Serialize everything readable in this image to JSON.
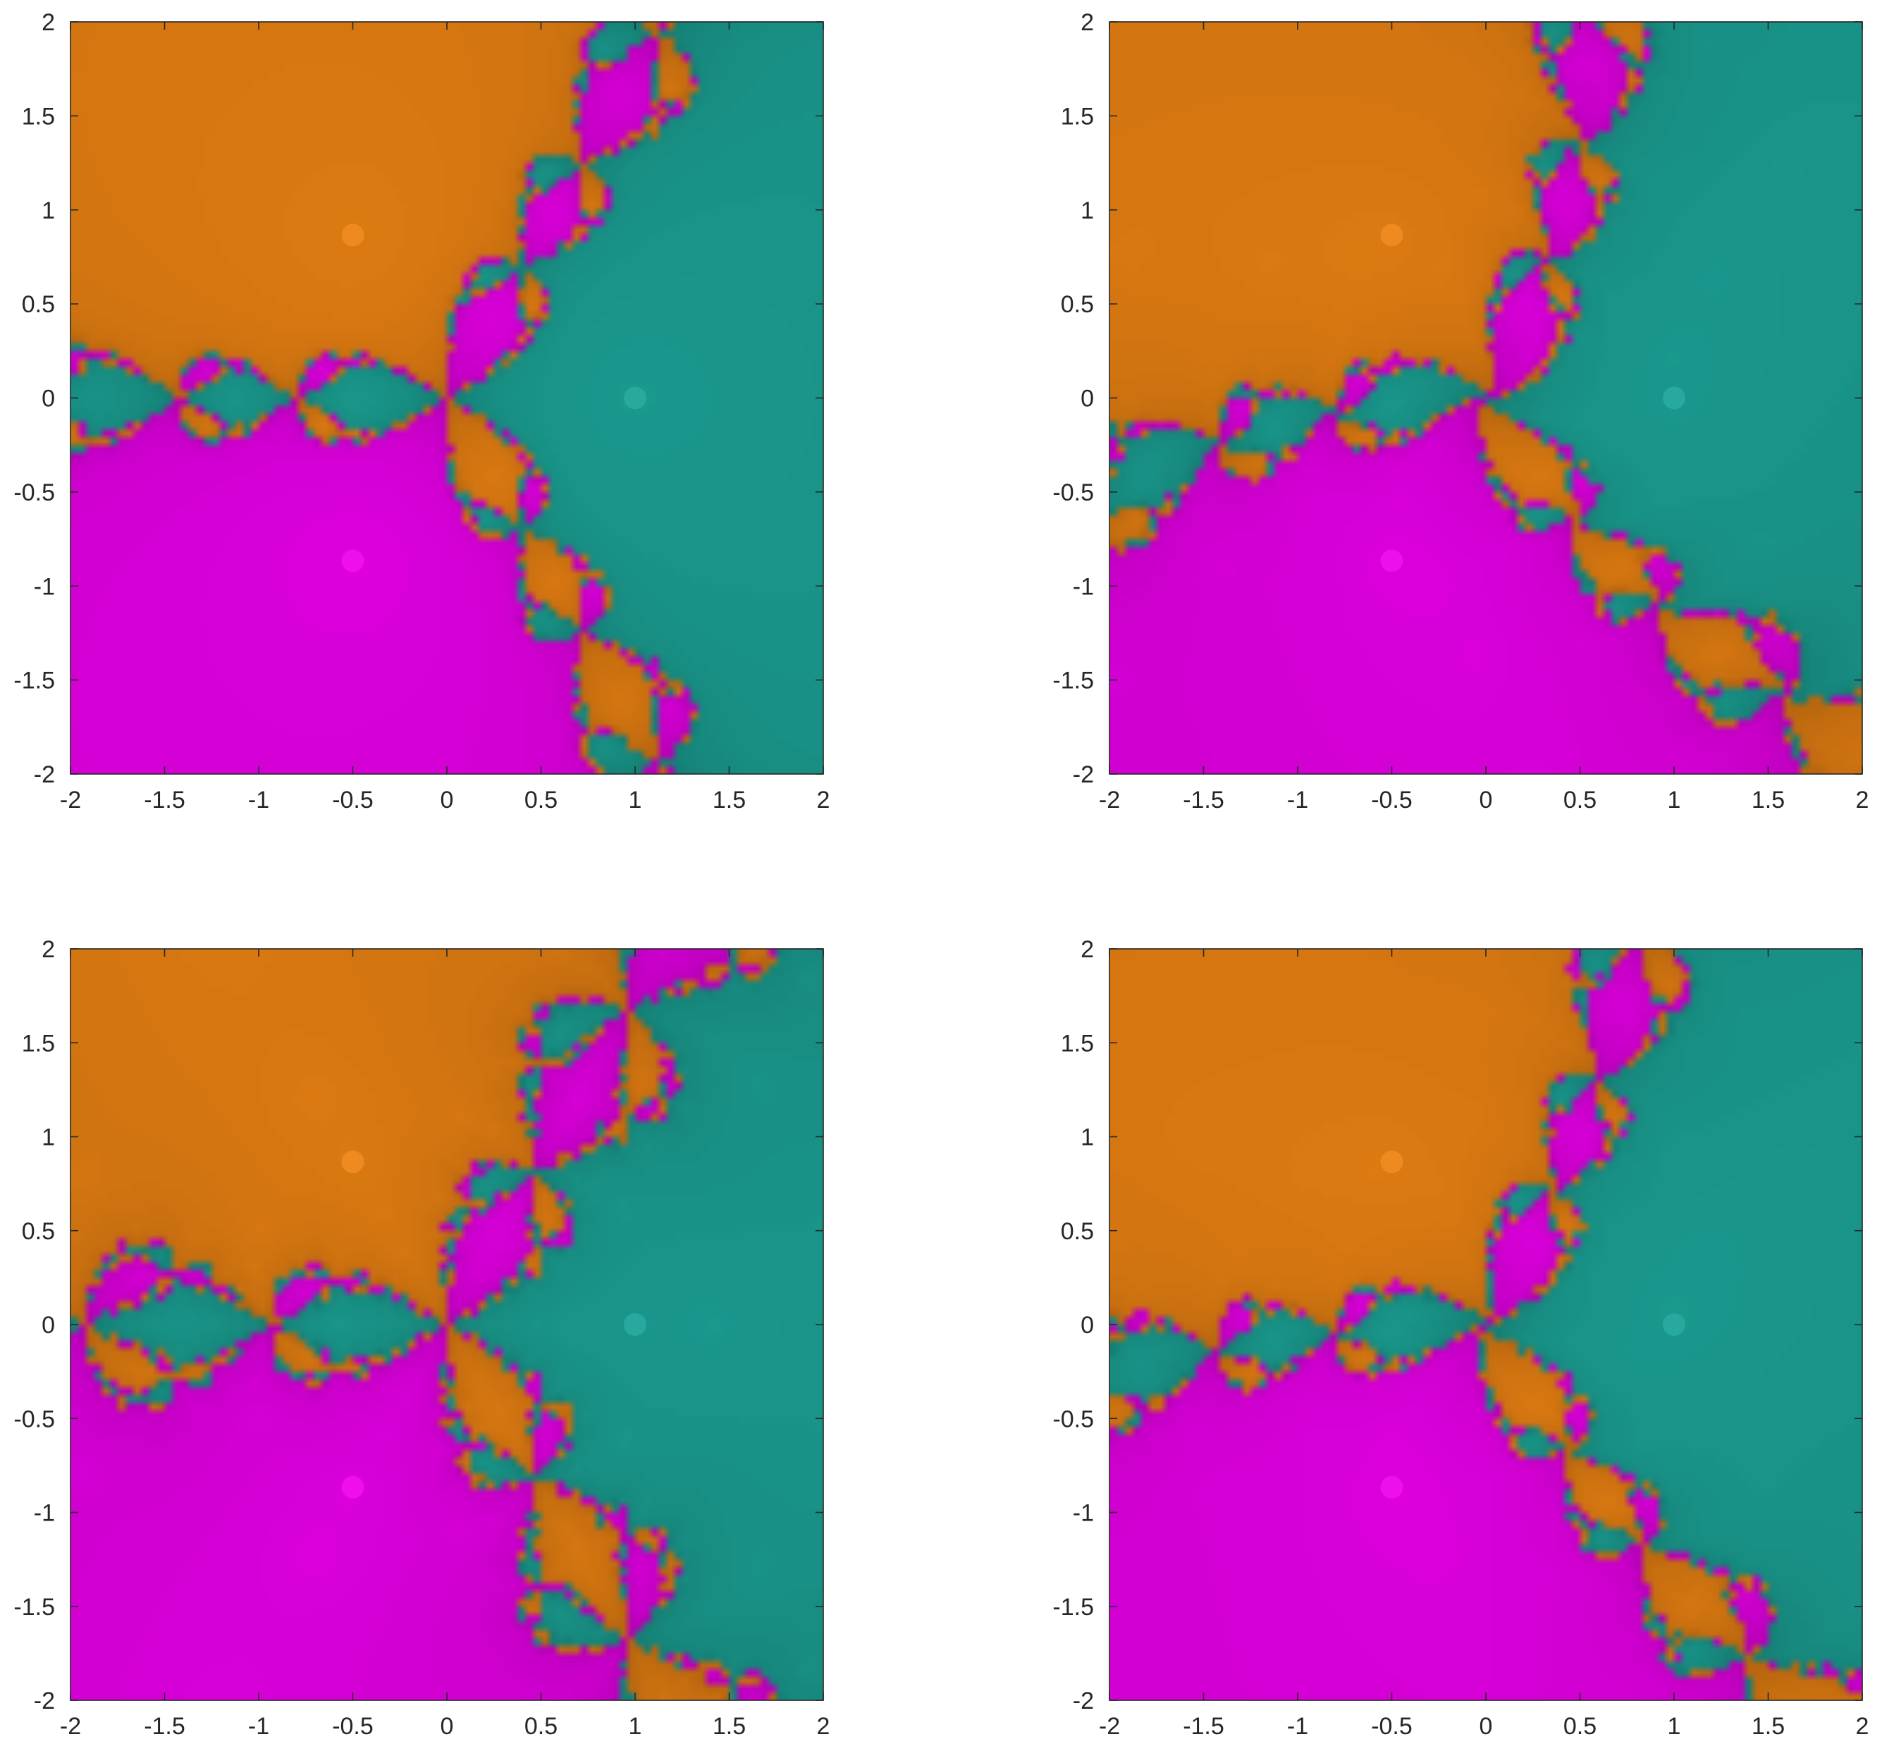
{
  "chart_data": [
    {
      "type": "heatmap",
      "title": "",
      "xlabel": "",
      "ylabel": "",
      "xlim": [
        -2,
        2
      ],
      "ylim": [
        -2,
        2
      ],
      "grid": false,
      "legend": "none",
      "x_ticks": [
        "-2",
        "-1.5",
        "-1",
        "-0.5",
        "0",
        "0.5",
        "1",
        "1.5",
        "2"
      ],
      "y_ticks": [
        "2",
        "1.5",
        "1",
        "0.5",
        "0",
        "-0.5",
        "-1",
        "-1.5",
        "-2"
      ],
      "basins": [
        {
          "color": "#e07c12",
          "root": [
            -0.5,
            0.866
          ]
        },
        {
          "color": "#1a9b8f",
          "root": [
            1.0,
            0.0
          ]
        },
        {
          "color": "#e000e0",
          "root": [
            -0.5,
            -0.866
          ]
        }
      ],
      "nonconvergent_color": "#000000"
    },
    {
      "type": "heatmap",
      "title": "",
      "xlabel": "",
      "ylabel": "",
      "xlim": [
        -2,
        2
      ],
      "ylim": [
        -2,
        2
      ],
      "grid": false,
      "legend": "none",
      "x_ticks": [
        "-2",
        "-1.5",
        "-1",
        "-0.5",
        "0",
        "0.5",
        "1",
        "1.5",
        "2"
      ],
      "y_ticks": [
        "2",
        "1.5",
        "1",
        "0.5",
        "0",
        "-0.5",
        "-1",
        "-1.5",
        "-2"
      ],
      "basins": [
        {
          "color": "#e07c12",
          "root": [
            -0.5,
            0.866
          ]
        },
        {
          "color": "#1a9b8f",
          "root": [
            1.0,
            0.0
          ]
        },
        {
          "color": "#e000e0",
          "root": [
            -0.5,
            -0.866
          ]
        }
      ],
      "nonconvergent_color": "#000000"
    },
    {
      "type": "heatmap",
      "title": "",
      "xlabel": "",
      "ylabel": "",
      "xlim": [
        -2,
        2
      ],
      "ylim": [
        -2,
        2
      ],
      "grid": false,
      "legend": "none",
      "x_ticks": [
        "-2",
        "-1.5",
        "-1",
        "-0.5",
        "0",
        "0.5",
        "1",
        "1.5",
        "2"
      ],
      "y_ticks": [
        "2",
        "1.5",
        "1",
        "0.5",
        "0",
        "-0.5",
        "-1",
        "-1.5",
        "-2"
      ],
      "basins": [
        {
          "color": "#e07c12",
          "root": [
            -0.5,
            0.866
          ]
        },
        {
          "color": "#1a9b8f",
          "root": [
            1.0,
            0.0
          ]
        },
        {
          "color": "#e000e0",
          "root": [
            -0.5,
            -0.866
          ]
        }
      ],
      "nonconvergent_color": "#000000"
    },
    {
      "type": "heatmap",
      "title": "",
      "xlabel": "",
      "ylabel": "",
      "xlim": [
        -2,
        2
      ],
      "ylim": [
        -2,
        2
      ],
      "grid": false,
      "legend": "none",
      "x_ticks": [
        "-2",
        "-1.5",
        "-1",
        "-0.5",
        "0",
        "0.5",
        "1",
        "1.5",
        "2"
      ],
      "y_ticks": [
        "2",
        "1.5",
        "1",
        "0.5",
        "0",
        "-0.5",
        "-1",
        "-1.5",
        "-2"
      ],
      "basins": [
        {
          "color": "#e07c12",
          "root": [
            -0.5,
            0.866
          ]
        },
        {
          "color": "#1a9b8f",
          "root": [
            1.0,
            0.0
          ]
        },
        {
          "color": "#e000e0",
          "root": [
            -0.5,
            -0.866
          ]
        }
      ],
      "nonconvergent_color": "#000000"
    }
  ]
}
